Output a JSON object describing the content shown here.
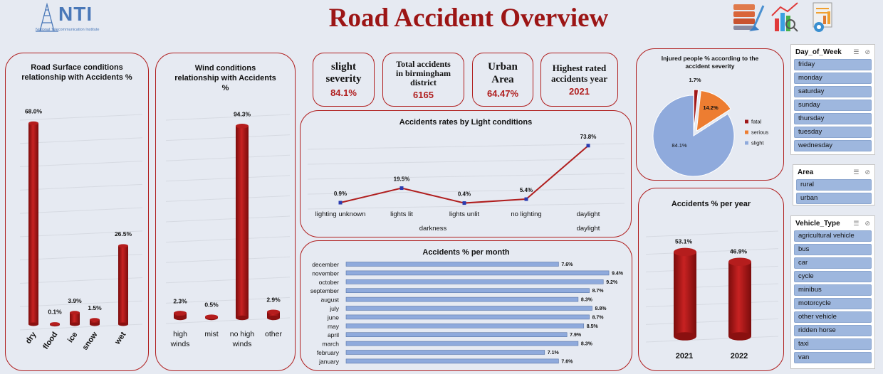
{
  "header": {
    "title": "Road Accident Overview",
    "logo_text": "NTI",
    "logo_sub": "National Telecommunication Institute"
  },
  "kpis": [
    {
      "label": "slight severity",
      "value": "84.1%"
    },
    {
      "label": "Total accidents in birmingham district",
      "value": "6165"
    },
    {
      "label": "Urban Area",
      "value": "64.47%"
    },
    {
      "label": "Highest rated accidents year",
      "value": "2021"
    }
  ],
  "chart_data": [
    {
      "id": "road_surface",
      "type": "bar",
      "title": "Road Surface conditions relationship with Accidents %",
      "categories": [
        "dry",
        "flood",
        "ice",
        "snow",
        "wet"
      ],
      "values": [
        68.0,
        0.1,
        3.9,
        1.5,
        26.5
      ],
      "value_labels": [
        "68.0%",
        "0.1%",
        "3.9%",
        "1.5%",
        "26.5%"
      ],
      "ylim": [
        0,
        70
      ]
    },
    {
      "id": "wind",
      "type": "bar",
      "title": "Wind conditions relationship with Accidents %",
      "categories": [
        "high winds",
        "mist",
        "no high winds",
        "other"
      ],
      "values": [
        2.3,
        0.5,
        94.3,
        2.9
      ],
      "value_labels": [
        "2.3%",
        "0.5%",
        "94.3%",
        "2.9%"
      ],
      "ylim": [
        0,
        100
      ]
    },
    {
      "id": "light",
      "type": "line",
      "title": "Accidents rates by Light conditions",
      "categories": [
        "lighting unknown",
        "lights lit",
        "lights unlit",
        "no lighting",
        "daylight"
      ],
      "groups": [
        "darkness",
        "daylight"
      ],
      "values": [
        0.9,
        19.5,
        0.4,
        5.4,
        73.8
      ],
      "value_labels": [
        "0.9%",
        "19.5%",
        "0.4%",
        "5.4%",
        "73.8%"
      ],
      "ylim": [
        0,
        80
      ]
    },
    {
      "id": "month",
      "type": "bar",
      "orientation": "horizontal",
      "title": "Accidents % per month",
      "categories": [
        "december",
        "november",
        "october",
        "september",
        "august",
        "july",
        "june",
        "may",
        "april",
        "march",
        "february",
        "january"
      ],
      "values": [
        7.6,
        9.4,
        9.2,
        8.7,
        8.3,
        8.8,
        8.7,
        8.5,
        7.9,
        8.3,
        7.1,
        7.6
      ],
      "value_labels": [
        "7.6%",
        "9.4%",
        "9.2%",
        "8.7%",
        "8.3%",
        "8.8%",
        "8.7%",
        "8.5%",
        "7.9%",
        "8.3%",
        "7.1%",
        "7.6%"
      ],
      "xlim": [
        0,
        9.5
      ]
    },
    {
      "id": "severity",
      "type": "pie",
      "title": "Injured people % according to the accident severity",
      "categories": [
        "fatal",
        "serious",
        "slight"
      ],
      "values": [
        1.7,
        14.2,
        84.1
      ],
      "value_labels": [
        "1.7%",
        "14.2%",
        "84.1%"
      ],
      "colors": [
        "#a01818",
        "#ed7d31",
        "#8faadc"
      ],
      "legend": "right"
    },
    {
      "id": "year",
      "type": "bar",
      "title": "Accidents % per year",
      "categories": [
        "2021",
        "2022"
      ],
      "values": [
        53.1,
        46.9
      ],
      "value_labels": [
        "53.1%",
        "46.9%"
      ],
      "ylim": [
        0,
        60
      ]
    }
  ],
  "slicers": [
    {
      "title": "Day_of_Week",
      "items": [
        "friday",
        "monday",
        "saturday",
        "sunday",
        "thursday",
        "tuesday",
        "wednesday"
      ]
    },
    {
      "title": "Area",
      "items": [
        "rural",
        "urban"
      ]
    },
    {
      "title": "Vehicle_Type",
      "items": [
        "agricultural vehicle",
        "bus",
        "car",
        "cycle",
        "minibus",
        "motorcycle",
        "other vehicle",
        "ridden horse",
        "taxi",
        "van"
      ]
    }
  ],
  "colors": {
    "accent": "#b01e1e",
    "bar": "#b41c1c",
    "month_bar": "#8faadc",
    "slicer_item": "#9eb7de"
  },
  "icons": [
    "server-cleaning-icon",
    "chart-analysis-icon",
    "report-settings-icon"
  ]
}
